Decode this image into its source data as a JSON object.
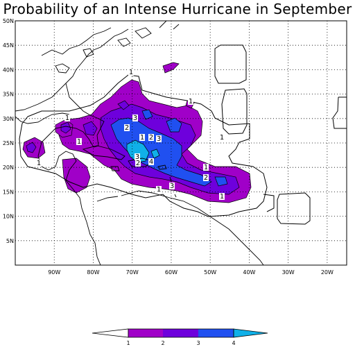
{
  "title": "Probability of an Intense Hurricane in September",
  "colors": {
    "level_1": "#a000c8",
    "level_2": "#6e00dc",
    "level_3": "#2050f0",
    "level_4": "#10b0e8",
    "grid": "#000000",
    "coast": "#000000"
  },
  "axes": {
    "lat_labels": [
      "50N",
      "45N",
      "40N",
      "35N",
      "30N",
      "25N",
      "20N",
      "15N",
      "10N",
      "5N"
    ],
    "lon_labels": [
      "90W",
      "80W",
      "70W",
      "60W",
      "50W",
      "40W",
      "30W",
      "20W"
    ],
    "lat_range": [
      0,
      50
    ],
    "lon_range": [
      -100,
      -15
    ],
    "grid": "dotted"
  },
  "legend": {
    "ticks": [
      "1",
      "2",
      "3",
      "4"
    ],
    "placement": "bottom"
  },
  "contour_labels": [
    "1",
    "1",
    "1",
    "1",
    "1",
    "1",
    "1",
    "1",
    "2",
    "2",
    "2",
    "3",
    "3",
    "3",
    "3",
    "4",
    "1",
    "2",
    "1"
  ]
}
